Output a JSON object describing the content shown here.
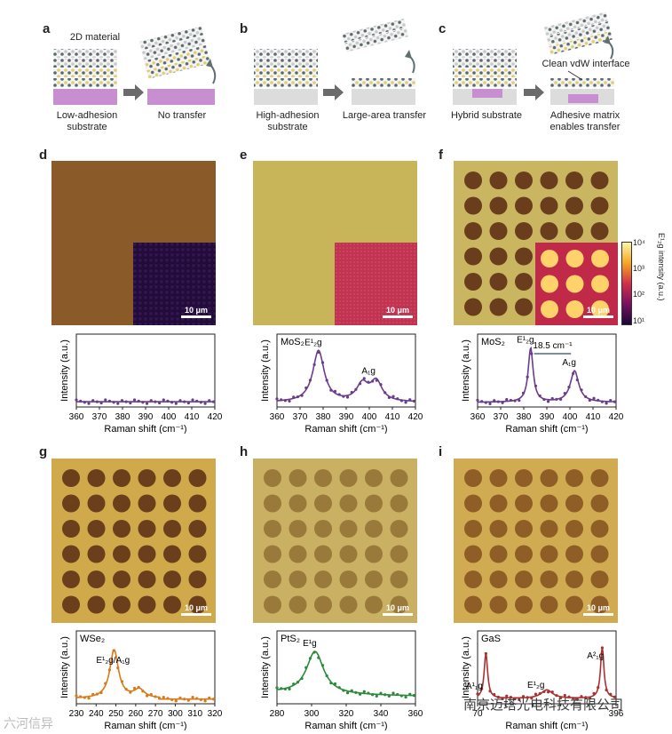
{
  "row1": {
    "a": {
      "label": "a",
      "material": "2D material",
      "left_caption": "Low-adhesion\nsubstrate",
      "right_caption": "No transfer"
    },
    "b": {
      "label": "b",
      "left_caption": "High-adhesion\nsubstrate",
      "right_caption": "Large-area transfer"
    },
    "c": {
      "label": "c",
      "left_caption": "Hybrid substrate",
      "right_caption": "Adhesive matrix\nenables transfer",
      "interface": "Clean vdW interface"
    }
  },
  "micro_labels": {
    "d": "d",
    "e": "e",
    "f": "f",
    "g": "g",
    "h": "h",
    "i": "i"
  },
  "scale_bar": "10 μm",
  "colorbar": {
    "ticks": [
      "10⁴",
      "10³",
      "10²",
      "10¹"
    ],
    "title": "E¹₂g intensity (a.u.)"
  },
  "colors": {
    "d_brown": "#8a5a28",
    "e_gold": "#c8b55a",
    "f_gold": "#cab660",
    "g_gold": "#cfa94a",
    "h_gold": "#c9b062",
    "i_gold": "#d0ab52",
    "d_curve": "#6a3d8c",
    "g_curve": "#d97a1a",
    "h_curve": "#2a8a3a",
    "i_curve": "#a83232"
  },
  "chart_data": [
    {
      "panel": "d",
      "type": "line",
      "xlabel": "Raman shift (cm⁻¹)",
      "ylabel": "Intensity (a.u.)",
      "xlim": [
        360,
        420
      ],
      "ticks": [
        "360",
        "370",
        "380",
        "390",
        "400",
        "410",
        "420"
      ],
      "sample": "",
      "peaks": []
    },
    {
      "panel": "e",
      "type": "line",
      "xlabel": "Raman shift (cm⁻¹)",
      "ylabel": "Intensity (a.u.)",
      "xlim": [
        360,
        420
      ],
      "ticks": [
        "360",
        "370",
        "380",
        "390",
        "400",
        "410",
        "420"
      ],
      "sample": "MoS₂",
      "peaks": [
        {
          "x": 378,
          "label": "E¹₂g"
        },
        {
          "x": 402,
          "label": "A₁g"
        }
      ]
    },
    {
      "panel": "f",
      "type": "line",
      "xlabel": "Raman shift (cm⁻¹)",
      "ylabel": "Intensity (a.u.)",
      "xlim": [
        360,
        420
      ],
      "ticks": [
        "360",
        "370",
        "380",
        "390",
        "400",
        "410",
        "420"
      ],
      "sample": "MoS₂",
      "annotation": "18.5 cm⁻¹",
      "peaks": [
        {
          "x": 383,
          "label": "E¹₂g"
        },
        {
          "x": 402,
          "label": "A₁g"
        }
      ]
    },
    {
      "panel": "g",
      "type": "line",
      "xlabel": "Raman shift (cm⁻¹)",
      "ylabel": "Intensity (a.u.)",
      "ticks": [
        "230",
        "240",
        "250",
        "260",
        "270",
        "300",
        "310",
        "320"
      ],
      "sample": "WSe₂",
      "peaks": [
        {
          "x": 250,
          "label": "E¹₂g/A₁g"
        }
      ]
    },
    {
      "panel": "h",
      "type": "line",
      "xlabel": "Raman shift (cm⁻¹)",
      "ylabel": "Intensity (a.u.)",
      "xlim": [
        280,
        360
      ],
      "ticks": [
        "280",
        "300",
        "320",
        "340",
        "360"
      ],
      "sample": "PtS₂",
      "peaks": [
        {
          "x": 302,
          "label": "E¹g"
        }
      ]
    },
    {
      "panel": "i",
      "type": "line",
      "xlabel": "Raman shift (cm⁻¹)",
      "ylabel": "Intensity (a.u.)",
      "ticks": [
        "70",
        "",
        "",
        "",
        "",
        "396"
      ],
      "sample": "GaS",
      "peaks": [
        {
          "x": 75,
          "label": "A¹₁g"
        },
        {
          "x": 220,
          "label": "E¹₂g"
        },
        {
          "x": 360,
          "label": "A²₁g"
        }
      ]
    }
  ],
  "watermark": {
    "cn": "南京迈塔光电科技有限公司",
    "left": "六河信异"
  }
}
